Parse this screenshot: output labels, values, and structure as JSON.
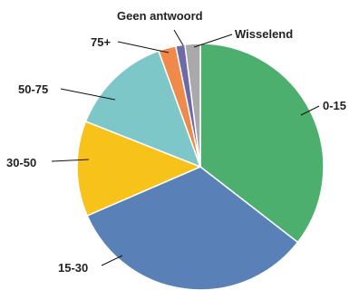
{
  "chart_data": {
    "type": "pie",
    "title": "",
    "start": "top",
    "direction": "clockwise",
    "slices": [
      {
        "label": "0-15",
        "value": 35.5,
        "color": "#4caf6e"
      },
      {
        "label": "15-30",
        "value": 33.0,
        "color": "#5a80b8"
      },
      {
        "label": "30-50",
        "value": 12.5,
        "color": "#f7c21a"
      },
      {
        "label": "50-75",
        "value": 13.5,
        "color": "#7ec7c9"
      },
      {
        "label": "75+",
        "value": 2.3,
        "color": "#f08a4b"
      },
      {
        "label": "Geen antwoord",
        "value": 1.2,
        "color": "#6e6aa7"
      },
      {
        "label": "Wisselend",
        "value": 2.0,
        "color": "#a9a9a9"
      }
    ]
  }
}
